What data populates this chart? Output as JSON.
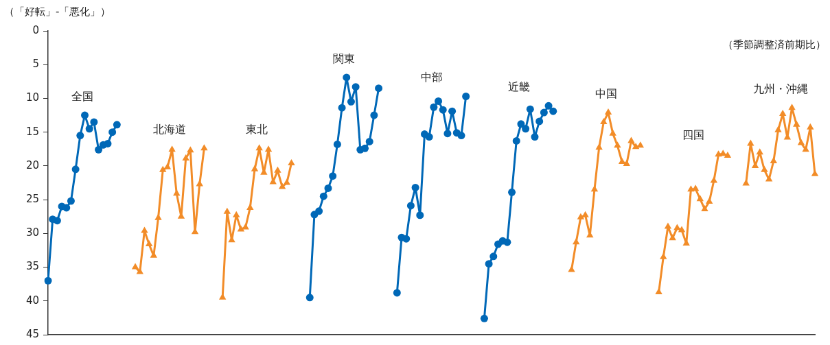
{
  "chart_data": {
    "type": "line",
    "ylabel": "（「好転」-「悪化」）",
    "annotations": [
      "（季節調整済前期比）"
    ],
    "ylim": [
      45,
      0
    ],
    "yticks": [
      0,
      5,
      10,
      15,
      20,
      25,
      30,
      35,
      40,
      45
    ],
    "grid": false,
    "legend": false,
    "line_style": "solid",
    "categories": [
      null,
      null,
      null,
      null,
      null,
      null,
      null,
      null,
      null,
      null,
      null,
      null,
      null,
      null,
      null,
      null,
      null,
      null,
      null,
      null,
      null,
      null,
      null,
      null,
      null,
      null,
      null,
      null,
      null,
      null,
      null,
      null,
      null,
      null,
      null,
      null,
      null,
      null,
      null,
      null,
      null,
      null,
      null,
      null,
      null,
      null,
      null,
      null,
      null,
      null,
      null,
      null,
      null,
      null,
      null,
      null,
      null,
      null,
      null,
      null,
      null,
      null,
      null,
      null,
      null,
      null,
      null,
      null,
      null,
      null,
      null,
      null,
      null,
      null,
      null,
      null,
      null,
      null,
      null,
      null,
      null,
      null,
      null,
      null,
      null,
      null,
      null,
      null,
      null,
      null,
      null,
      null,
      null,
      null,
      null,
      null,
      null,
      null,
      null,
      null,
      null,
      null,
      null,
      null,
      null,
      null,
      null,
      null,
      null,
      null,
      null,
      null,
      null,
      null,
      null,
      null,
      null,
      null,
      null,
      null,
      null,
      null,
      null,
      null,
      null,
      null,
      null,
      null,
      null,
      null,
      null,
      null,
      null,
      null,
      null,
      null,
      null,
      null,
      null,
      null,
      null,
      null,
      null,
      null,
      null,
      null,
      null,
      null,
      null,
      null,
      null,
      null,
      null,
      null,
      null,
      null,
      null,
      null,
      null,
      null,
      null,
      null,
      null,
      null,
      null,
      null,
      null,
      null
    ],
    "series": [
      {
        "name": "全国",
        "color": "#0068b7",
        "marker": "circle",
        "values": [
          37.0,
          27.9,
          28.1,
          26.0,
          26.2,
          25.2,
          20.5,
          15.5,
          12.5,
          14.5,
          13.5,
          17.6,
          16.9,
          16.7,
          15.0,
          13.9,
          null,
          null,
          null,
          null,
          null,
          null,
          null,
          null,
          null,
          null,
          null,
          null,
          null,
          null,
          null,
          null,
          null,
          null,
          null,
          null,
          null,
          null,
          null,
          null,
          null,
          null,
          null,
          null,
          null,
          null,
          null,
          null,
          null,
          null,
          null,
          null,
          null,
          null,
          null,
          null,
          null,
          null,
          null,
          null,
          null,
          null,
          null,
          null,
          null,
          null,
          null,
          null,
          null,
          null,
          null,
          null,
          null,
          null,
          null,
          null,
          null,
          null,
          null,
          null,
          null,
          null,
          null,
          null,
          null,
          null,
          null,
          null,
          null,
          null,
          null,
          null,
          null,
          null,
          null,
          null,
          null,
          null,
          null,
          null,
          null,
          null,
          null,
          null,
          null,
          null,
          null,
          null,
          null,
          null,
          null,
          null,
          null,
          null,
          null,
          null,
          null,
          null,
          null,
          null,
          null,
          null,
          null,
          null,
          null,
          null,
          null,
          null,
          null,
          null,
          null,
          null,
          null,
          null,
          null,
          null,
          null,
          null,
          null,
          null,
          null,
          null,
          null,
          null,
          null,
          null,
          null,
          null,
          null,
          null,
          null,
          null,
          null,
          null,
          null,
          null,
          null,
          null,
          null,
          null,
          null,
          null,
          null,
          null,
          null,
          null,
          null,
          null
        ]
      },
      {
        "name": "北海道",
        "color": "#f28c28",
        "marker": "triangle",
        "values": [
          null,
          null,
          null,
          null,
          null,
          null,
          null,
          null,
          null,
          null,
          null,
          null,
          null,
          null,
          null,
          null,
          null,
          null,
          null,
          35.0,
          35.7,
          29.6,
          31.6,
          33.3,
          27.7,
          20.6,
          20.2,
          17.6,
          24.1,
          27.5,
          18.9,
          17.7,
          29.8,
          22.7,
          17.4,
          null,
          null,
          null,
          null,
          null,
          null,
          null,
          null,
          null,
          null,
          null,
          null,
          null,
          null,
          null,
          null,
          null,
          null,
          null,
          null,
          null,
          null,
          null,
          null,
          null,
          null,
          null,
          null,
          null,
          null,
          null,
          null,
          null,
          null,
          null,
          null,
          null,
          null,
          null,
          null,
          null,
          null,
          null,
          null,
          null,
          null,
          null,
          null,
          null,
          null,
          null,
          null,
          null,
          null,
          null,
          null,
          null,
          null,
          null,
          null,
          null,
          null,
          null,
          null,
          null,
          null,
          null,
          null,
          null,
          null,
          null,
          null,
          null,
          null,
          null,
          null,
          null,
          null,
          null,
          null,
          null,
          null,
          null,
          null,
          null,
          null,
          null,
          null,
          null,
          null,
          null,
          null,
          null,
          null,
          null,
          null,
          null,
          null,
          null,
          null,
          null,
          null,
          null,
          null,
          null,
          null,
          null,
          null,
          null,
          null,
          null,
          null,
          null,
          null,
          null,
          null,
          null,
          null,
          null,
          null,
          null,
          null,
          null,
          null,
          null,
          null,
          null,
          null,
          null,
          null,
          null,
          null,
          null
        ]
      },
      {
        "name": "東北",
        "color": "#f28c28",
        "marker": "triangle",
        "values": [
          null,
          null,
          null,
          null,
          null,
          null,
          null,
          null,
          null,
          null,
          null,
          null,
          null,
          null,
          null,
          null,
          null,
          null,
          null,
          null,
          null,
          null,
          null,
          null,
          null,
          null,
          null,
          null,
          null,
          null,
          null,
          null,
          null,
          null,
          null,
          null,
          null,
          null,
          39.5,
          26.8,
          31.0,
          27.3,
          29.4,
          29.1,
          26.2,
          20.5,
          17.4,
          21.0,
          17.6,
          22.4,
          20.7,
          23.1,
          22.5,
          19.6,
          null,
          null,
          null,
          null,
          null,
          null,
          null,
          null,
          null,
          null,
          null,
          null,
          null,
          null,
          null,
          null,
          null,
          null,
          null,
          null,
          null,
          null,
          null,
          null,
          null,
          null,
          null,
          null,
          null,
          null,
          null,
          null,
          null,
          null,
          null,
          null,
          null,
          null,
          null,
          null,
          null,
          null,
          null,
          null,
          null,
          null,
          null,
          null,
          null,
          null,
          null,
          null,
          null,
          null,
          null,
          null,
          null,
          null,
          null,
          null,
          null,
          null,
          null,
          null,
          null,
          null,
          null,
          null,
          null,
          null,
          null,
          null,
          null,
          null,
          null,
          null,
          null,
          null,
          null,
          null,
          null,
          null,
          null,
          null,
          null,
          null,
          null,
          null,
          null,
          null,
          null,
          null,
          null,
          null,
          null,
          null,
          null,
          null,
          null,
          null,
          null,
          null,
          null,
          null,
          null,
          null,
          null,
          null,
          null,
          null,
          null,
          null,
          null,
          null
        ]
      },
      {
        "name": "関東",
        "color": "#0068b7",
        "marker": "circle",
        "values": [
          null,
          null,
          null,
          null,
          null,
          null,
          null,
          null,
          null,
          null,
          null,
          null,
          null,
          null,
          null,
          null,
          null,
          null,
          null,
          null,
          null,
          null,
          null,
          null,
          null,
          null,
          null,
          null,
          null,
          null,
          null,
          null,
          null,
          null,
          null,
          null,
          null,
          null,
          null,
          null,
          null,
          null,
          null,
          null,
          null,
          null,
          null,
          null,
          null,
          null,
          null,
          null,
          null,
          null,
          null,
          null,
          null,
          39.5,
          27.2,
          26.7,
          24.5,
          23.3,
          21.5,
          16.8,
          11.4,
          6.9,
          10.5,
          8.3,
          17.6,
          17.4,
          16.4,
          12.5,
          8.5,
          null,
          null,
          null,
          null,
          null,
          null,
          null,
          null,
          null,
          null,
          null,
          null,
          null,
          null,
          null,
          null,
          null,
          null,
          null,
          null,
          null,
          null,
          null,
          null,
          null,
          null,
          null,
          null,
          null,
          null,
          null,
          null,
          null,
          null,
          null,
          null,
          null,
          null,
          null,
          null,
          null,
          null,
          null,
          null,
          null,
          null,
          null,
          null,
          null,
          null,
          null,
          null,
          null,
          null,
          null,
          null,
          null,
          null,
          null,
          null,
          null,
          null,
          null,
          null,
          null,
          null,
          null,
          null,
          null,
          null,
          null,
          null,
          null,
          null,
          null,
          null,
          null,
          null,
          null,
          null,
          null,
          null,
          null,
          null,
          null,
          null,
          null,
          null,
          null,
          null,
          null,
          null,
          null,
          null,
          null
        ]
      },
      {
        "name": "中部",
        "color": "#0068b7",
        "marker": "circle",
        "values": [
          null,
          null,
          null,
          null,
          null,
          null,
          null,
          null,
          null,
          null,
          null,
          null,
          null,
          null,
          null,
          null,
          null,
          null,
          null,
          null,
          null,
          null,
          null,
          null,
          null,
          null,
          null,
          null,
          null,
          null,
          null,
          null,
          null,
          null,
          null,
          null,
          null,
          null,
          null,
          null,
          null,
          null,
          null,
          null,
          null,
          null,
          null,
          null,
          null,
          null,
          null,
          null,
          null,
          null,
          null,
          null,
          null,
          null,
          null,
          null,
          null,
          null,
          null,
          null,
          null,
          null,
          null,
          null,
          null,
          null,
          null,
          null,
          null,
          null,
          null,
          null,
          38.8,
          30.6,
          30.8,
          25.9,
          23.2,
          27.3,
          15.3,
          15.7,
          11.3,
          10.4,
          11.7,
          15.2,
          11.9,
          15.1,
          15.5,
          9.7,
          null,
          null,
          null,
          null,
          null,
          null,
          null,
          null,
          null,
          null,
          null,
          null,
          null,
          null,
          null,
          null,
          null,
          null,
          null,
          null,
          null,
          null,
          null,
          null,
          null,
          null,
          null,
          null,
          null,
          null,
          null,
          null,
          null,
          null,
          null,
          null,
          null,
          null,
          null,
          null,
          null,
          null,
          null,
          null,
          null,
          null,
          null,
          null,
          null,
          null,
          null,
          null,
          null,
          null,
          null,
          null,
          null,
          null,
          null,
          null,
          null,
          null,
          null,
          null,
          null,
          null,
          null,
          null,
          null,
          null,
          null,
          null,
          null,
          null,
          null,
          null
        ]
      },
      {
        "name": "近畿",
        "color": "#0068b7",
        "marker": "circle",
        "values": [
          null,
          null,
          null,
          null,
          null,
          null,
          null,
          null,
          null,
          null,
          null,
          null,
          null,
          null,
          null,
          null,
          null,
          null,
          null,
          null,
          null,
          null,
          null,
          null,
          null,
          null,
          null,
          null,
          null,
          null,
          null,
          null,
          null,
          null,
          null,
          null,
          null,
          null,
          null,
          null,
          null,
          null,
          null,
          null,
          null,
          null,
          null,
          null,
          null,
          null,
          null,
          null,
          null,
          null,
          null,
          null,
          null,
          null,
          null,
          null,
          null,
          null,
          null,
          null,
          null,
          null,
          null,
          null,
          null,
          null,
          null,
          null,
          null,
          null,
          null,
          null,
          null,
          null,
          null,
          null,
          null,
          null,
          null,
          null,
          null,
          null,
          null,
          null,
          null,
          null,
          null,
          null,
          null,
          null,
          null,
          42.6,
          34.5,
          33.4,
          31.6,
          31.1,
          31.3,
          23.9,
          16.3,
          13.8,
          14.5,
          11.6,
          15.7,
          13.4,
          12.1,
          11.1,
          11.9,
          null,
          null,
          null,
          null,
          null,
          null,
          null,
          null,
          null,
          null,
          null,
          null,
          null,
          null,
          null,
          null,
          null,
          null,
          null,
          null,
          null,
          null,
          null,
          null,
          null,
          null,
          null,
          null,
          null,
          null,
          null,
          null,
          null,
          null,
          null,
          null,
          null,
          null,
          null,
          null,
          null,
          null,
          null,
          null,
          null,
          null,
          null,
          null,
          null,
          null,
          null,
          null,
          null,
          null,
          null,
          null,
          null
        ]
      },
      {
        "name": "中国",
        "color": "#f28c28",
        "marker": "triangle",
        "values": [
          null,
          null,
          null,
          null,
          null,
          null,
          null,
          null,
          null,
          null,
          null,
          null,
          null,
          null,
          null,
          null,
          null,
          null,
          null,
          null,
          null,
          null,
          null,
          null,
          null,
          null,
          null,
          null,
          null,
          null,
          null,
          null,
          null,
          null,
          null,
          null,
          null,
          null,
          null,
          null,
          null,
          null,
          null,
          null,
          null,
          null,
          null,
          null,
          null,
          null,
          null,
          null,
          null,
          null,
          null,
          null,
          null,
          null,
          null,
          null,
          null,
          null,
          null,
          null,
          null,
          null,
          null,
          null,
          null,
          null,
          null,
          null,
          null,
          null,
          null,
          null,
          null,
          null,
          null,
          null,
          null,
          null,
          null,
          null,
          null,
          null,
          null,
          null,
          null,
          null,
          null,
          null,
          null,
          null,
          null,
          null,
          null,
          null,
          null,
          null,
          null,
          null,
          null,
          null,
          null,
          null,
          null,
          null,
          null,
          null,
          null,
          null,
          null,
          null,
          35.4,
          31.3,
          27.6,
          27.3,
          30.3,
          23.5,
          17.3,
          13.5,
          12.1,
          15.2,
          17.0,
          19.4,
          19.7,
          16.3,
          17.2,
          17.0,
          null,
          null,
          null,
          null,
          null,
          null,
          null,
          null,
          null,
          null,
          null,
          null,
          null,
          null,
          null,
          null,
          null,
          null,
          null,
          null,
          null,
          null,
          null,
          null,
          null,
          null,
          null,
          null,
          null,
          null,
          null,
          null,
          null,
          null,
          null,
          null,
          null,
          null
        ]
      },
      {
        "name": "四国",
        "color": "#f28c28",
        "marker": "triangle",
        "values": [
          null,
          null,
          null,
          null,
          null,
          null,
          null,
          null,
          null,
          null,
          null,
          null,
          null,
          null,
          null,
          null,
          null,
          null,
          null,
          null,
          null,
          null,
          null,
          null,
          null,
          null,
          null,
          null,
          null,
          null,
          null,
          null,
          null,
          null,
          null,
          null,
          null,
          null,
          null,
          null,
          null,
          null,
          null,
          null,
          null,
          null,
          null,
          null,
          null,
          null,
          null,
          null,
          null,
          null,
          null,
          null,
          null,
          null,
          null,
          null,
          null,
          null,
          null,
          null,
          null,
          null,
          null,
          null,
          null,
          null,
          null,
          null,
          null,
          null,
          null,
          null,
          null,
          null,
          null,
          null,
          null,
          null,
          null,
          null,
          null,
          null,
          null,
          null,
          null,
          null,
          null,
          null,
          null,
          null,
          null,
          null,
          null,
          null,
          null,
          null,
          null,
          null,
          null,
          null,
          null,
          null,
          null,
          null,
          null,
          null,
          null,
          null,
          null,
          null,
          null,
          null,
          null,
          null,
          null,
          null,
          null,
          null,
          null,
          null,
          null,
          null,
          null,
          null,
          null,
          null,
          null,
          null,
          null,
          38.7,
          33.5,
          29.0,
          30.7,
          29.2,
          29.5,
          31.5,
          23.5,
          23.4,
          24.9,
          26.4,
          25.3,
          22.2,
          18.3,
          18.2,
          18.5,
          null,
          null,
          null,
          null,
          null,
          null,
          null,
          null,
          null,
          null,
          null,
          null,
          null,
          null,
          null,
          null,
          null,
          null,
          null
        ]
      },
      {
        "name": "九州・沖縄",
        "color": "#f28c28",
        "marker": "triangle",
        "values": [
          null,
          null,
          null,
          null,
          null,
          null,
          null,
          null,
          null,
          null,
          null,
          null,
          null,
          null,
          null,
          null,
          null,
          null,
          null,
          null,
          null,
          null,
          null,
          null,
          null,
          null,
          null,
          null,
          null,
          null,
          null,
          null,
          null,
          null,
          null,
          null,
          null,
          null,
          null,
          null,
          null,
          null,
          null,
          null,
          null,
          null,
          null,
          null,
          null,
          null,
          null,
          null,
          null,
          null,
          null,
          null,
          null,
          null,
          null,
          null,
          null,
          null,
          null,
          null,
          null,
          null,
          null,
          null,
          null,
          null,
          null,
          null,
          null,
          null,
          null,
          null,
          null,
          null,
          null,
          null,
          null,
          null,
          null,
          null,
          null,
          null,
          null,
          null,
          null,
          null,
          null,
          null,
          null,
          null,
          null,
          null,
          null,
          null,
          null,
          null,
          null,
          null,
          null,
          null,
          null,
          null,
          null,
          null,
          null,
          null,
          null,
          null,
          null,
          null,
          null,
          null,
          null,
          null,
          null,
          null,
          null,
          null,
          null,
          null,
          null,
          null,
          null,
          null,
          null,
          null,
          null,
          null,
          null,
          null,
          null,
          null,
          null,
          null,
          null,
          null,
          null,
          null,
          null,
          null,
          null,
          null,
          null,
          null,
          null,
          null,
          null,
          null,
          22.6,
          16.7,
          20.0,
          18.0,
          20.6,
          22.0,
          19.3,
          14.7,
          12.3,
          15.8,
          11.4,
          13.9,
          16.6,
          17.6,
          14.3,
          21.2
        ]
      }
    ]
  }
}
